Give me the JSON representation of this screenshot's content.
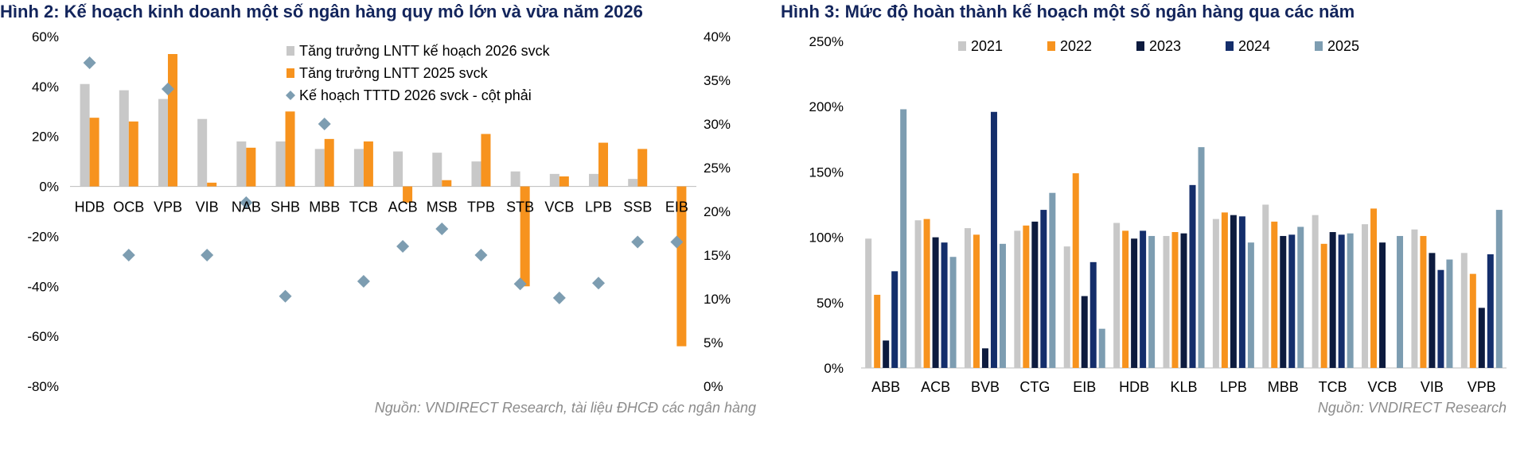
{
  "charts": [
    {
      "title": "Hình 2: Kế hoạch kinh doanh một số ngân hàng quy mô lớn và vừa năm 2026",
      "source": "Nguồn:  VNDIRECT Research, tài liệu ĐHCĐ các ngân hàng",
      "colors": {
        "plan": "#c8c8c8",
        "actual": "#f7931e",
        "credit": "#7d9db1"
      }
    },
    {
      "title": "Hình 3: Mức độ hoàn thành kế hoạch một số ngân hàng qua các năm",
      "source": "Nguồn: VNDIRECT Research"
    }
  ],
  "chart_data": [
    {
      "type": "bar",
      "categories": [
        "HDB",
        "OCB",
        "VPB",
        "VIB",
        "NAB",
        "SHB",
        "MBB",
        "TCB",
        "ACB",
        "MSB",
        "TPB",
        "STB",
        "VCB",
        "LPB",
        "SSB",
        "EIB"
      ],
      "series": [
        {
          "name": "Tăng trưởng LNTT kế hoạch 2026 svck",
          "type": "bar",
          "axis": "left",
          "color": "#c8c8c8",
          "values": [
            41,
            38.5,
            35,
            27,
            18,
            18,
            15,
            15,
            14,
            13.5,
            10,
            6,
            5,
            5,
            3,
            0
          ]
        },
        {
          "name": "Tăng trưởng LNTT 2025 svck",
          "type": "bar",
          "axis": "left",
          "color": "#f7931e",
          "values": [
            27.5,
            26,
            53,
            1.5,
            15.5,
            30,
            19,
            18,
            -6.5,
            2.5,
            21,
            -40,
            4,
            17.5,
            15,
            -64
          ]
        },
        {
          "name": "Kế hoạch TTTD 2026 svck - cột phải",
          "type": "scatter",
          "axis": "right",
          "color": "#7d9db1",
          "values": [
            37,
            15,
            34,
            15,
            21,
            10.3,
            30,
            12,
            16,
            18,
            15,
            11.7,
            10.1,
            11.8,
            16.5,
            16.5
          ]
        }
      ],
      "left_axis": {
        "min": -80,
        "max": 60,
        "step": 20,
        "ticks": [
          "60%",
          "40%",
          "20%",
          "0%",
          "-20%",
          "-40%",
          "-60%",
          "-80%"
        ]
      },
      "right_axis": {
        "min": 0,
        "max": 40,
        "step": 5,
        "ticks": [
          "40%",
          "35%",
          "30%",
          "25%",
          "20%",
          "15%",
          "10%",
          "5%",
          "0%"
        ]
      },
      "legend_position": "top-right",
      "grid": false
    },
    {
      "type": "bar",
      "categories": [
        "ABB",
        "ACB",
        "BVB",
        "CTG",
        "EIB",
        "HDB",
        "KLB",
        "LPB",
        "MBB",
        "TCB",
        "VCB",
        "VIB",
        "VPB"
      ],
      "series": [
        {
          "name": "2021",
          "color": "#c8c8c8",
          "values": [
            99,
            113,
            107,
            105,
            93,
            111,
            101,
            114,
            125,
            117,
            110,
            106,
            88
          ]
        },
        {
          "name": "2022",
          "color": "#f7931e",
          "values": [
            56,
            114,
            102,
            109,
            149,
            105,
            104,
            119,
            112,
            95,
            122,
            101,
            72
          ]
        },
        {
          "name": "2023",
          "color": "#0d1b3e",
          "values": [
            21,
            100,
            15,
            112,
            55,
            99,
            103,
            117,
            101,
            104,
            96,
            88,
            46
          ]
        },
        {
          "name": "2024",
          "color": "#142e6b",
          "values": [
            74,
            96,
            196,
            121,
            81,
            105,
            140,
            116,
            102,
            102,
            0,
            75,
            87
          ]
        },
        {
          "name": "2025",
          "color": "#7d9db1",
          "values": [
            198,
            85,
            95,
            134,
            30,
            101,
            169,
            96,
            108,
            103,
            101,
            83,
            121
          ]
        }
      ],
      "y_axis": {
        "min": 0,
        "max": 250,
        "step": 50,
        "ticks": [
          "250%",
          "200%",
          "150%",
          "100%",
          "50%",
          "0%"
        ]
      },
      "legend_position": "top",
      "grid": false
    }
  ]
}
